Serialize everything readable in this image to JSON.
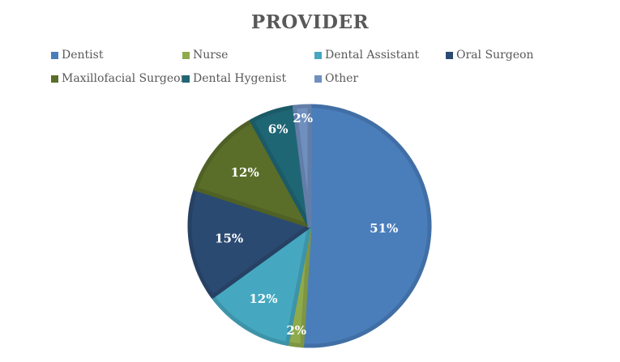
{
  "chart_data": {
    "type": "pie",
    "title": "PROVIDER",
    "categories": [
      "Dentist",
      "Nurse",
      "Dental Assistant",
      "Oral Surgeon",
      "Maxillofacial Surgeon",
      "Dental Hygenist",
      "Other"
    ],
    "values": [
      51,
      2,
      12,
      15,
      12,
      6,
      2
    ],
    "labels": [
      "51%",
      "2%",
      "12%",
      "15%",
      "12%",
      "6%",
      "2%"
    ],
    "colors": [
      "#4a7ebb",
      "#8faa4c",
      "#45a8c0",
      "#2b4a72",
      "#5a6e2a",
      "#1f6675",
      "#6f8fbf"
    ],
    "start_angle_deg": 0,
    "direction": "clockwise",
    "legend_position": "top"
  },
  "legend": {
    "items": [
      {
        "label": "Dentist",
        "color": "#4a7ebb"
      },
      {
        "label": "Nurse",
        "color": "#8faa4c"
      },
      {
        "label": "Dental Assistant",
        "color": "#45a8c0"
      },
      {
        "label": "Oral Surgeon",
        "color": "#2b4a72"
      },
      {
        "label": "Maxillofacial Surgeon",
        "color": "#5a6e2a"
      },
      {
        "label": "Dental Hygenist",
        "color": "#1f6675"
      },
      {
        "label": "Other",
        "color": "#6f8fbf"
      }
    ]
  }
}
